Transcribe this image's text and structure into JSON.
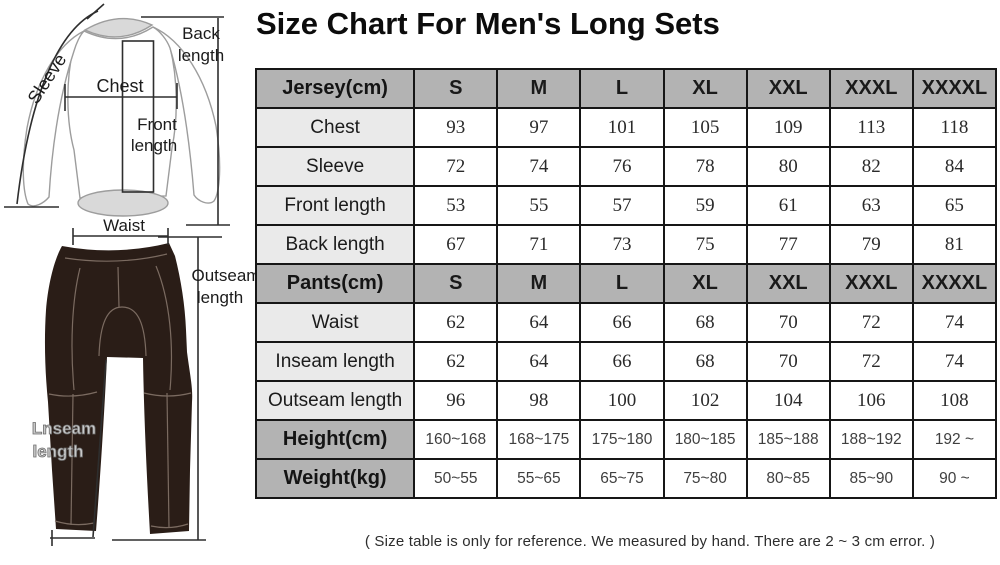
{
  "page": {
    "title": "Size Chart For Men's Long Sets",
    "footer_note": "( Size table is only for reference. We measured by hand. There are 2 ~ 3 cm error. )"
  },
  "diagram": {
    "jersey": {
      "sleeve_label": "Sleeve",
      "chest_label": "Chest",
      "front_label_line1": "Front",
      "front_label_line2": "length",
      "back_label_line1": "Back",
      "back_label_line2": "length"
    },
    "pants": {
      "waist_label": "Waist",
      "outseam_label_line1": "Outseam",
      "outseam_label_line2": "length",
      "inseam_label_line1": "Lnseam",
      "inseam_label_line2": "length"
    },
    "colors": {
      "jersey_outline": "#9d9d9d",
      "jersey_shade": "#d9d9d9",
      "measure_line": "#2e2e2e",
      "pants_fill": "#2a1d17",
      "pants_seam": "#7b6b61",
      "inseam_text": "#c9c9c9",
      "inseam_text_outline": "#6e6e6e"
    }
  },
  "size_table": {
    "sizes": [
      "S",
      "M",
      "L",
      "XL",
      "XXL",
      "XXXL",
      "XXXXL"
    ],
    "sections": [
      {
        "header": "Jersey(cm)",
        "rows": [
          {
            "label": "Chest",
            "values": [
              "93",
              "97",
              "101",
              "105",
              "109",
              "113",
              "118"
            ]
          },
          {
            "label": "Sleeve",
            "values": [
              "72",
              "74",
              "76",
              "78",
              "80",
              "82",
              "84"
            ]
          },
          {
            "label": "Front length",
            "values": [
              "53",
              "55",
              "57",
              "59",
              "61",
              "63",
              "65"
            ]
          },
          {
            "label": "Back length",
            "values": [
              "67",
              "71",
              "73",
              "75",
              "77",
              "79",
              "81"
            ]
          }
        ]
      },
      {
        "header": "Pants(cm)",
        "rows": [
          {
            "label": "Waist",
            "values": [
              "62",
              "64",
              "66",
              "68",
              "70",
              "72",
              "74"
            ]
          },
          {
            "label": "Inseam length",
            "values": [
              "62",
              "64",
              "66",
              "68",
              "70",
              "72",
              "74"
            ]
          },
          {
            "label": "Outseam length",
            "values": [
              "96",
              "98",
              "100",
              "102",
              "104",
              "106",
              "108"
            ]
          }
        ]
      }
    ],
    "footer_rows": [
      {
        "label": "Height(cm)",
        "values": [
          "160~168",
          "168~175",
          "175~180",
          "180~185",
          "185~188",
          "188~192",
          "192 ~"
        ]
      },
      {
        "label": "Weight(kg)",
        "values": [
          "50~55",
          "55~65",
          "65~75",
          "75~80",
          "80~85",
          "85~90",
          "90 ~"
        ]
      }
    ],
    "colors": {
      "header_bg": "#b3b3b3",
      "label_bg": "#eaeaea",
      "border": "#161616"
    }
  }
}
